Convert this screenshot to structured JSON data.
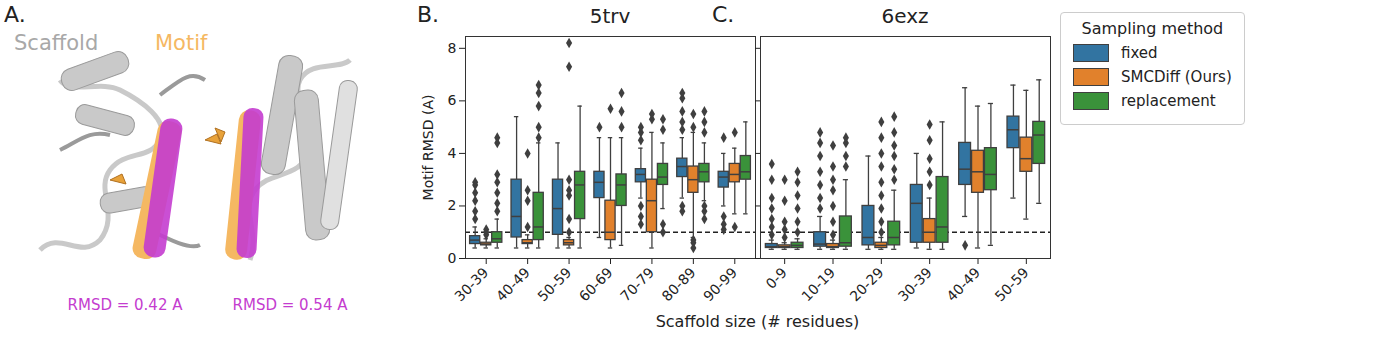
{
  "panel_a": {
    "label": "A.",
    "scaffold_label": "Scaffold",
    "motif_label": "Motif",
    "rmsd_labels": [
      "RMSD = 0.42 A",
      "RMSD = 0.54 A"
    ]
  },
  "x_label": "Scaffold size (# residues)",
  "legend_title": "Sampling method",
  "chart_data": [
    {
      "type": "box",
      "panel_label": "B.",
      "title": "5trv",
      "y_label": "Motif RMSD (A)",
      "categories": [
        "30-39",
        "40-49",
        "50-59",
        "60-69",
        "70-79",
        "80-89",
        "90-99"
      ],
      "ylim": [
        0,
        8.45
      ],
      "yticks": [
        0,
        2,
        4,
        6,
        8
      ],
      "reference_line": 1,
      "marker": "diamond",
      "series": [
        {
          "name": "fixed",
          "color": "#3274a1",
          "boxes": [
            {
              "q1": 0.55,
              "median": 0.7,
              "q3": 0.85,
              "whisker_low": 0.4,
              "whisker_high": 1.2,
              "outliers": [
                1.5,
                1.8,
                2.2,
                2.5,
                2.8,
                2.9
              ]
            },
            {
              "q1": 0.8,
              "median": 1.6,
              "q3": 3.0,
              "whisker_low": 0.4,
              "whisker_high": 5.4,
              "outliers": []
            },
            {
              "q1": 0.9,
              "median": 1.9,
              "q3": 3.0,
              "whisker_low": 0.4,
              "whisker_high": 4.4,
              "outliers": []
            },
            {
              "q1": 2.3,
              "median": 2.9,
              "q3": 3.3,
              "whisker_low": 0.8,
              "whisker_high": 4.6,
              "outliers": [
                5.0
              ]
            },
            {
              "q1": 2.9,
              "median": 3.2,
              "q3": 3.4,
              "whisker_low": 2.3,
              "whisker_high": 4.2,
              "outliers": [
                1.3,
                1.6,
                2.0,
                4.5,
                4.8,
                5.0
              ]
            },
            {
              "q1": 3.1,
              "median": 3.5,
              "q3": 3.8,
              "whisker_low": 2.3,
              "whisker_high": 4.6,
              "outliers": [
                1.8,
                2.0,
                4.9,
                5.2,
                5.6,
                6.1,
                6.3
              ]
            },
            {
              "q1": 2.7,
              "median": 3.1,
              "q3": 3.3,
              "whisker_low": 2.0,
              "whisker_high": 4.0,
              "outliers": [
                1.1,
                1.3,
                1.6,
                4.6
              ]
            }
          ]
        },
        {
          "name": "SMCDiff (Ours)",
          "color": "#e1812c",
          "boxes": [
            {
              "q1": 0.5,
              "median": 0.55,
              "q3": 0.6,
              "whisker_low": 0.4,
              "whisker_high": 0.75,
              "outliers": [
                0.9,
                1.0,
                1.1
              ]
            },
            {
              "q1": 0.55,
              "median": 0.6,
              "q3": 0.7,
              "whisker_low": 0.4,
              "whisker_high": 0.9,
              "outliers": [
                1.2,
                2.2,
                2.6,
                4.0
              ]
            },
            {
              "q1": 0.5,
              "median": 0.6,
              "q3": 0.7,
              "whisker_low": 0.4,
              "whisker_high": 0.8,
              "outliers": [
                1.0,
                1.5,
                2.4,
                2.6,
                3.0,
                7.3,
                8.2
              ]
            },
            {
              "q1": 0.7,
              "median": 1.0,
              "q3": 2.2,
              "whisker_low": 0.4,
              "whisker_high": 4.6,
              "outliers": [
                5.7
              ]
            },
            {
              "q1": 1.0,
              "median": 2.2,
              "q3": 3.0,
              "whisker_low": 0.4,
              "whisker_high": 4.8,
              "outliers": [
                5.3,
                5.5
              ]
            },
            {
              "q1": 2.5,
              "median": 3.0,
              "q3": 3.5,
              "whisker_low": 0.8,
              "whisker_high": 4.8,
              "outliers": [
                0.4,
                0.6,
                0.7,
                5.0,
                5.5
              ]
            },
            {
              "q1": 2.9,
              "median": 3.2,
              "q3": 3.6,
              "whisker_low": 1.7,
              "whisker_high": 4.2,
              "outliers": [
                1.2,
                4.8
              ]
            }
          ]
        },
        {
          "name": "replacement",
          "color": "#3a923a",
          "boxes": [
            {
              "q1": 0.6,
              "median": 0.75,
              "q3": 1.0,
              "whisker_low": 0.4,
              "whisker_high": 1.5,
              "outliers": [
                1.8,
                2.1,
                2.5,
                2.9,
                3.2,
                4.4,
                4.6
              ]
            },
            {
              "q1": 0.7,
              "median": 1.2,
              "q3": 2.5,
              "whisker_low": 0.4,
              "whisker_high": 4.4,
              "outliers": [
                4.6,
                5.0,
                5.8,
                6.3,
                6.6
              ]
            },
            {
              "q1": 1.5,
              "median": 2.8,
              "q3": 3.3,
              "whisker_low": 0.4,
              "whisker_high": 5.8,
              "outliers": []
            },
            {
              "q1": 2.0,
              "median": 2.8,
              "q3": 3.2,
              "whisker_low": 0.5,
              "whisker_high": 4.6,
              "outliers": [
                5.0,
                5.6,
                6.3
              ]
            },
            {
              "q1": 2.8,
              "median": 3.1,
              "q3": 3.6,
              "whisker_low": 1.9,
              "whisker_high": 4.4,
              "outliers": [
                1.0,
                1.3,
                4.9,
                5.3
              ]
            },
            {
              "q1": 2.9,
              "median": 3.3,
              "q3": 3.6,
              "whisker_low": 2.2,
              "whisker_high": 4.4,
              "outliers": [
                1.5,
                1.8,
                2.0,
                4.8,
                5.2,
                5.6
              ]
            },
            {
              "q1": 3.0,
              "median": 3.3,
              "q3": 3.9,
              "whisker_low": 1.7,
              "whisker_high": 5.2,
              "outliers": []
            }
          ]
        }
      ]
    },
    {
      "type": "box",
      "panel_label": "C.",
      "title": "6exz",
      "categories": [
        "0-9",
        "10-19",
        "20-29",
        "30-39",
        "40-49",
        "50-59"
      ],
      "ylim": [
        0,
        8.45
      ],
      "yticks": [
        0,
        2,
        4,
        6,
        8
      ],
      "tick_labels": "x",
      "reference_line": 1,
      "marker": "diamond",
      "series": [
        {
          "name": "fixed",
          "color": "#3274a1",
          "boxes": [
            {
              "q1": 0.4,
              "median": 0.45,
              "q3": 0.55,
              "whisker_low": 0.35,
              "whisker_high": 0.7,
              "outliers": [
                0.9,
                1.2,
                1.5,
                1.9,
                2.3,
                3.0,
                3.6
              ]
            },
            {
              "q1": 0.45,
              "median": 0.55,
              "q3": 1.0,
              "whisker_low": 0.35,
              "whisker_high": 1.6,
              "outliers": [
                1.9,
                2.3,
                2.8,
                3.3,
                3.9,
                4.4,
                4.8
              ]
            },
            {
              "q1": 0.5,
              "median": 0.8,
              "q3": 2.0,
              "whisker_low": 0.35,
              "whisker_high": 3.9,
              "outliers": []
            },
            {
              "q1": 0.6,
              "median": 2.1,
              "q3": 2.8,
              "whisker_low": 0.4,
              "whisker_high": 4.0,
              "outliers": []
            },
            {
              "q1": 2.8,
              "median": 3.4,
              "q3": 4.4,
              "whisker_low": 1.6,
              "whisker_high": 6.5,
              "outliers": [
                0.5
              ]
            },
            {
              "q1": 4.2,
              "median": 4.9,
              "q3": 5.4,
              "whisker_low": 2.3,
              "whisker_high": 6.6,
              "outliers": []
            }
          ]
        },
        {
          "name": "SMCDiff (Ours)",
          "color": "#e1812c",
          "boxes": [
            {
              "q1": 0.4,
              "median": 0.45,
              "q3": 0.5,
              "whisker_low": 0.35,
              "whisker_high": 0.6,
              "outliers": [
                0.8,
                1.1,
                1.4,
                2.2,
                3.0
              ]
            },
            {
              "q1": 0.4,
              "median": 0.45,
              "q3": 0.55,
              "whisker_low": 0.35,
              "whisker_high": 0.7,
              "outliers": [
                0.9,
                1.4,
                2.0,
                2.6,
                3.0,
                3.5,
                4.3
              ]
            },
            {
              "q1": 0.4,
              "median": 0.5,
              "q3": 0.6,
              "whisker_low": 0.35,
              "whisker_high": 0.8,
              "outliers": [
                1.0,
                1.4,
                1.9,
                2.4,
                2.9,
                3.5,
                4.0,
                4.6,
                5.2
              ]
            },
            {
              "q1": 0.6,
              "median": 1.0,
              "q3": 1.5,
              "whisker_low": 0.35,
              "whisker_high": 2.3,
              "outliers": [
                2.8,
                3.3,
                3.8,
                4.5,
                5.1
              ]
            },
            {
              "q1": 2.5,
              "median": 3.3,
              "q3": 4.1,
              "whisker_low": 0.4,
              "whisker_high": 5.8,
              "outliers": []
            },
            {
              "q1": 3.3,
              "median": 3.8,
              "q3": 4.6,
              "whisker_low": 1.5,
              "whisker_high": 6.4,
              "outliers": []
            }
          ]
        },
        {
          "name": "replacement",
          "color": "#3a923a",
          "boxes": [
            {
              "q1": 0.4,
              "median": 0.5,
              "q3": 0.6,
              "whisker_low": 0.35,
              "whisker_high": 0.75,
              "outliers": [
                1.0,
                1.4,
                1.9,
                2.4,
                2.9,
                3.3
              ]
            },
            {
              "q1": 0.45,
              "median": 0.6,
              "q3": 1.6,
              "whisker_low": 0.35,
              "whisker_high": 3.0,
              "outliers": [
                3.5,
                3.9,
                4.4,
                4.6
              ]
            },
            {
              "q1": 0.5,
              "median": 0.8,
              "q3": 1.4,
              "whisker_low": 0.35,
              "whisker_high": 2.6,
              "outliers": [
                3.0,
                3.4,
                3.9,
                4.3,
                4.8,
                5.4
              ]
            },
            {
              "q1": 0.6,
              "median": 1.2,
              "q3": 3.1,
              "whisker_low": 0.35,
              "whisker_high": 5.2,
              "outliers": []
            },
            {
              "q1": 2.6,
              "median": 3.2,
              "q3": 4.2,
              "whisker_low": 0.5,
              "whisker_high": 5.9,
              "outliers": []
            },
            {
              "q1": 3.6,
              "median": 4.7,
              "q3": 5.2,
              "whisker_low": 2.1,
              "whisker_high": 6.8,
              "outliers": []
            }
          ]
        }
      ]
    }
  ]
}
